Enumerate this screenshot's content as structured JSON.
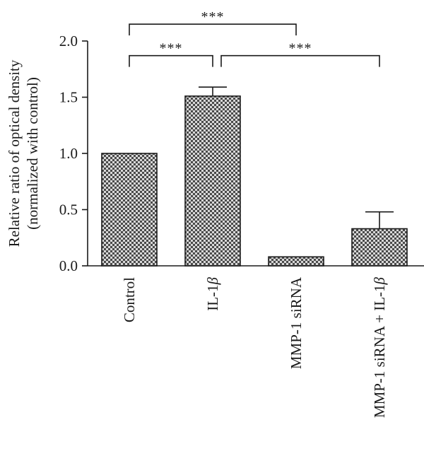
{
  "chart_data": {
    "type": "bar",
    "title": "",
    "xlabel": "",
    "ylabel_lines": [
      "Relative ratio of optical density",
      "(normalized with control)"
    ],
    "ylim": [
      0,
      2.0
    ],
    "yticks": [
      "0.0",
      "0.5",
      "1.0",
      "1.5",
      "2.0"
    ],
    "categories": [
      {
        "text": "Control"
      },
      {
        "text": "IL-1",
        "italic_suffix": "β"
      },
      {
        "text": "MMP-1 siRNA"
      },
      {
        "text": "MMP-1 siRNA + IL-1",
        "italic_suffix": "β"
      }
    ],
    "values": [
      1.0,
      1.51,
      0.08,
      0.33
    ],
    "errors": [
      0.0,
      0.08,
      0.0,
      0.15
    ],
    "bar_pattern": "checkerboard",
    "grid": false,
    "legend": "none",
    "significance": [
      {
        "from": 0,
        "to": 2,
        "label": "***",
        "level": 2.15
      },
      {
        "from": 0,
        "to": 1,
        "label": "***",
        "level": 1.87
      },
      {
        "from": 1,
        "to": 3,
        "label": "***",
        "level": 1.87
      }
    ]
  }
}
